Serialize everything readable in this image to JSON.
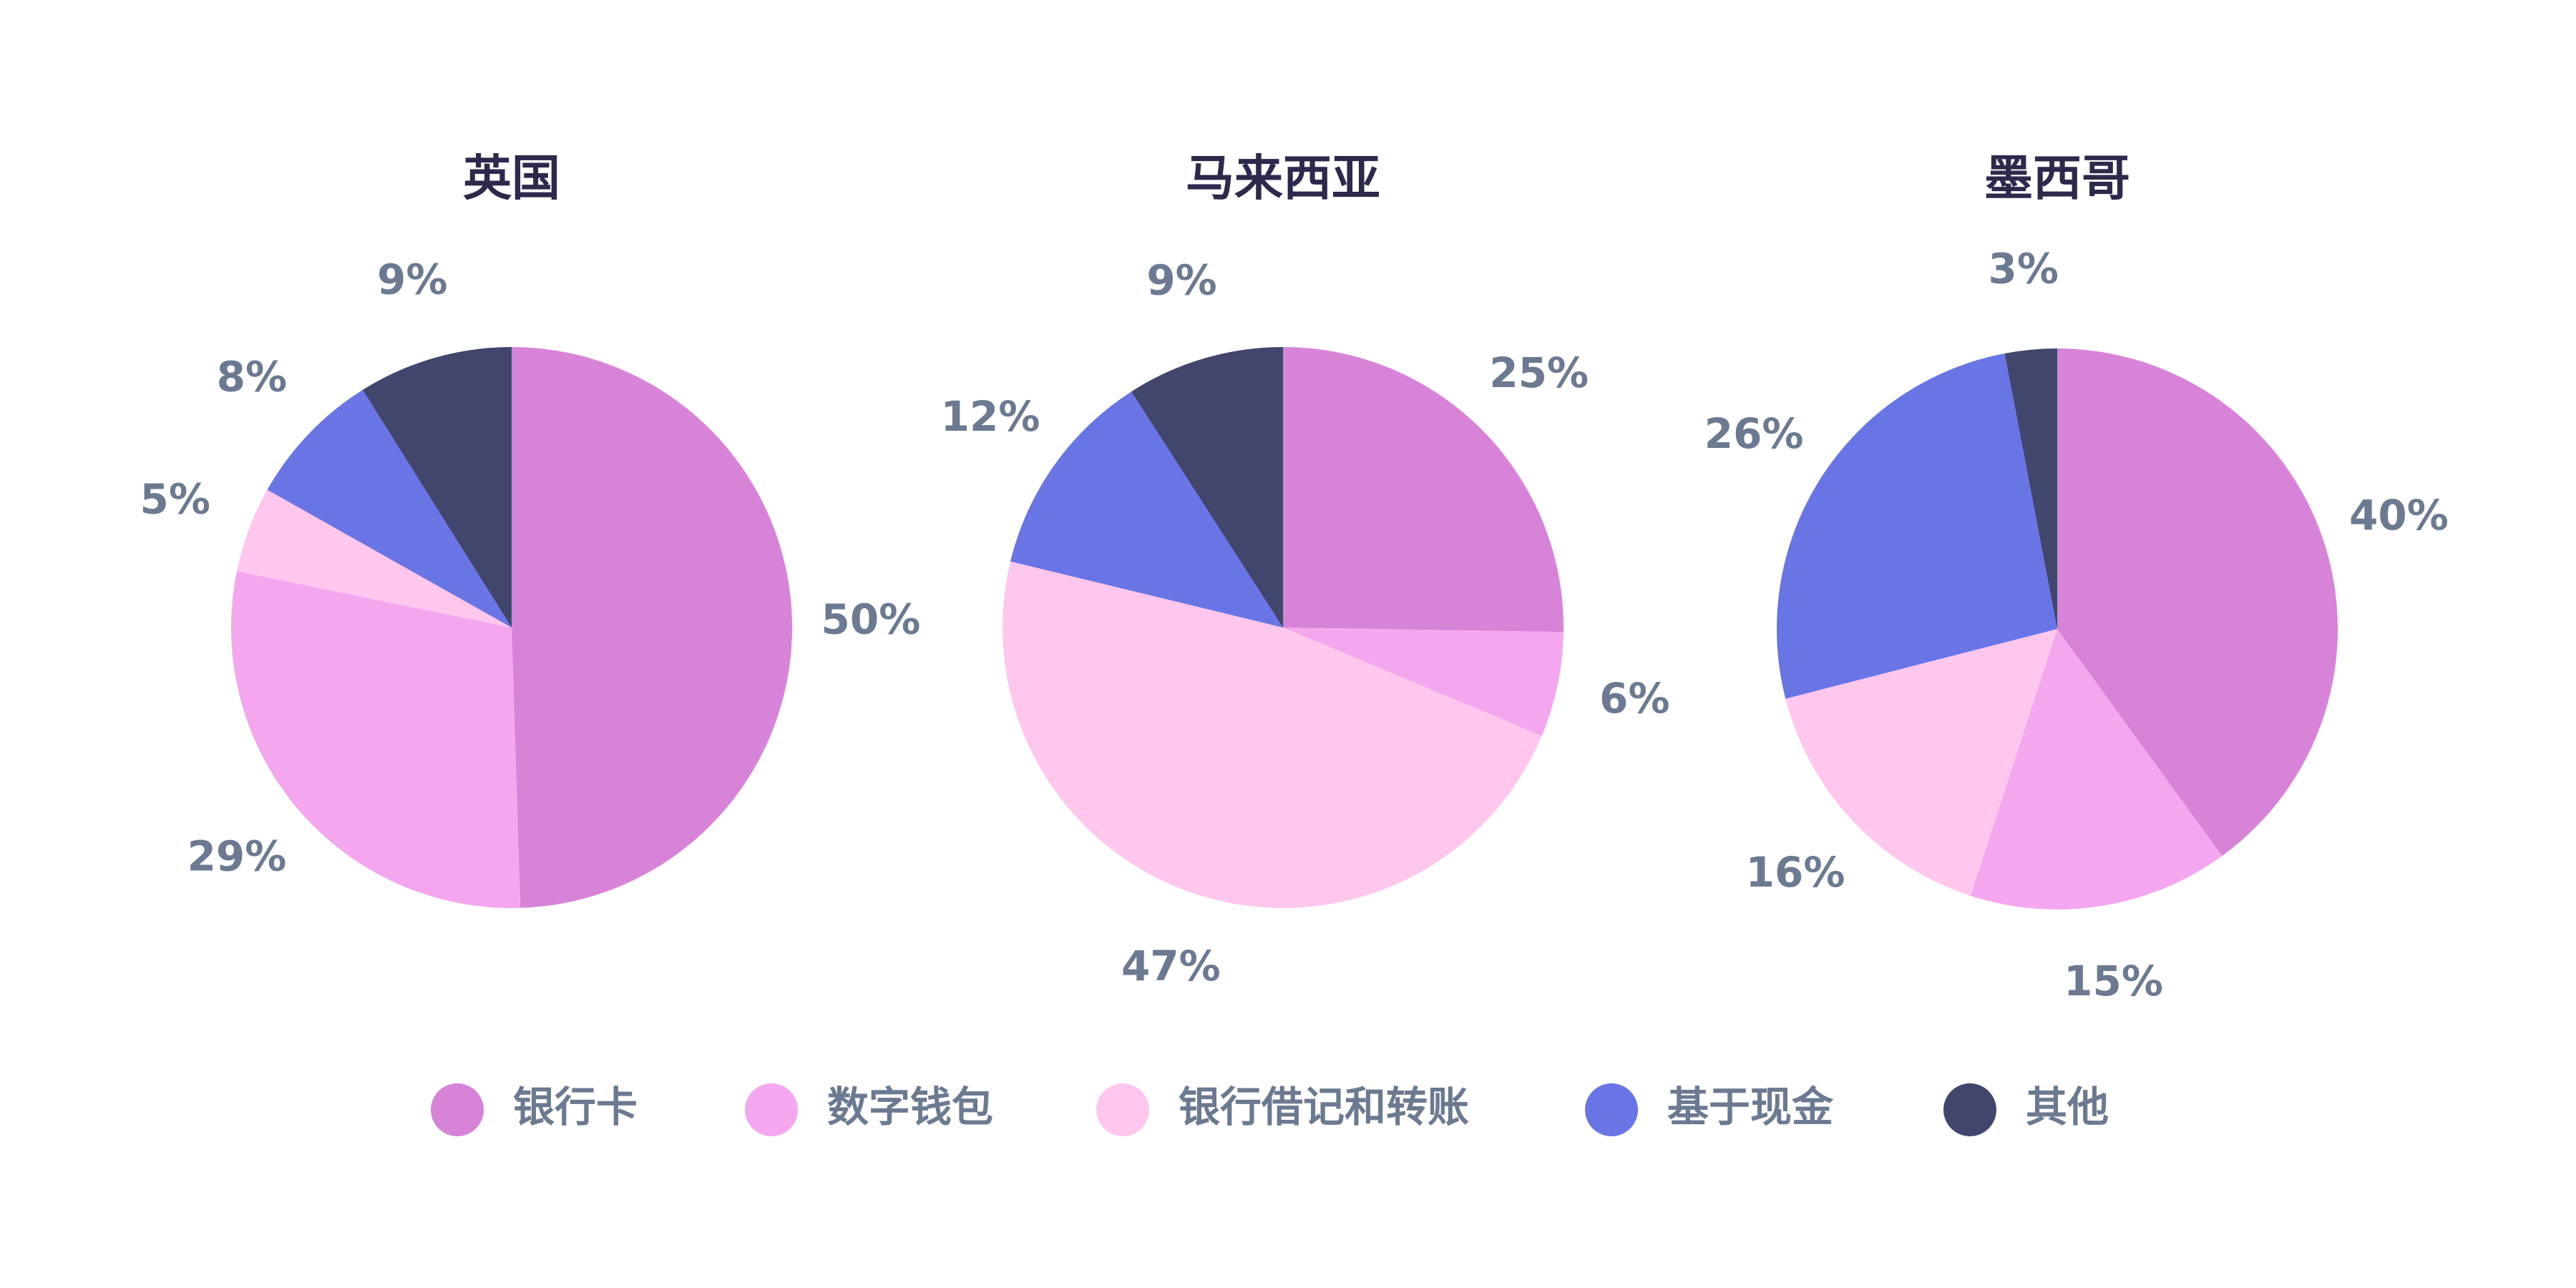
{
  "chart_data": [
    {
      "type": "pie",
      "title": "英国",
      "categories": [
        "银行卡",
        "数字钱包",
        "银行借记和转账",
        "基于现金",
        "其他"
      ],
      "values": [
        50,
        29,
        5,
        8,
        9
      ],
      "value_labels": [
        "50%",
        "29%",
        "5%",
        "8%",
        "9%"
      ],
      "colors": [
        "#d683d8",
        "#f4a6ee",
        "#ffc7ee",
        "#6a75e5",
        "#42466c"
      ]
    },
    {
      "type": "pie",
      "title": "马来西亚",
      "categories": [
        "银行卡",
        "数字钱包",
        "银行借记和转账",
        "基于现金",
        "其他"
      ],
      "values": [
        25,
        6,
        47,
        12,
        9
      ],
      "value_labels": [
        "25%",
        "6%",
        "47%",
        "12%",
        "9%"
      ],
      "colors": [
        "#d683d8",
        "#f4a6ee",
        "#ffc7ee",
        "#6a75e5",
        "#42466c"
      ]
    },
    {
      "type": "pie",
      "title": "墨西哥",
      "categories": [
        "银行卡",
        "数字钱包",
        "银行借记和转账",
        "基于现金",
        "其他"
      ],
      "values": [
        40,
        15,
        16,
        26,
        3
      ],
      "value_labels": [
        "40%",
        "15%",
        "16%",
        "26%",
        "3%"
      ],
      "colors": [
        "#d683d8",
        "#f4a6ee",
        "#ffc7ee",
        "#6a75e5",
        "#42466c"
      ]
    }
  ]
}
